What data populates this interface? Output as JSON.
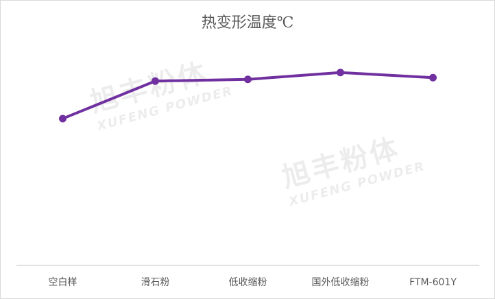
{
  "chart_data": {
    "type": "line",
    "title": "热变形温度℃",
    "categories": [
      "空白样",
      "滑石粉",
      "低收缩粉",
      "国外低收缩粉",
      "FTM-601Y"
    ],
    "values": [
      86,
      108,
      109,
      113,
      110
    ],
    "ylim": [
      0,
      135
    ],
    "y_axis_visible": false,
    "grid": false,
    "legend": "none",
    "line_color": "#7030A0"
  },
  "watermark": {
    "cn": "旭丰粉体",
    "en": "XUFENG POWDER"
  }
}
